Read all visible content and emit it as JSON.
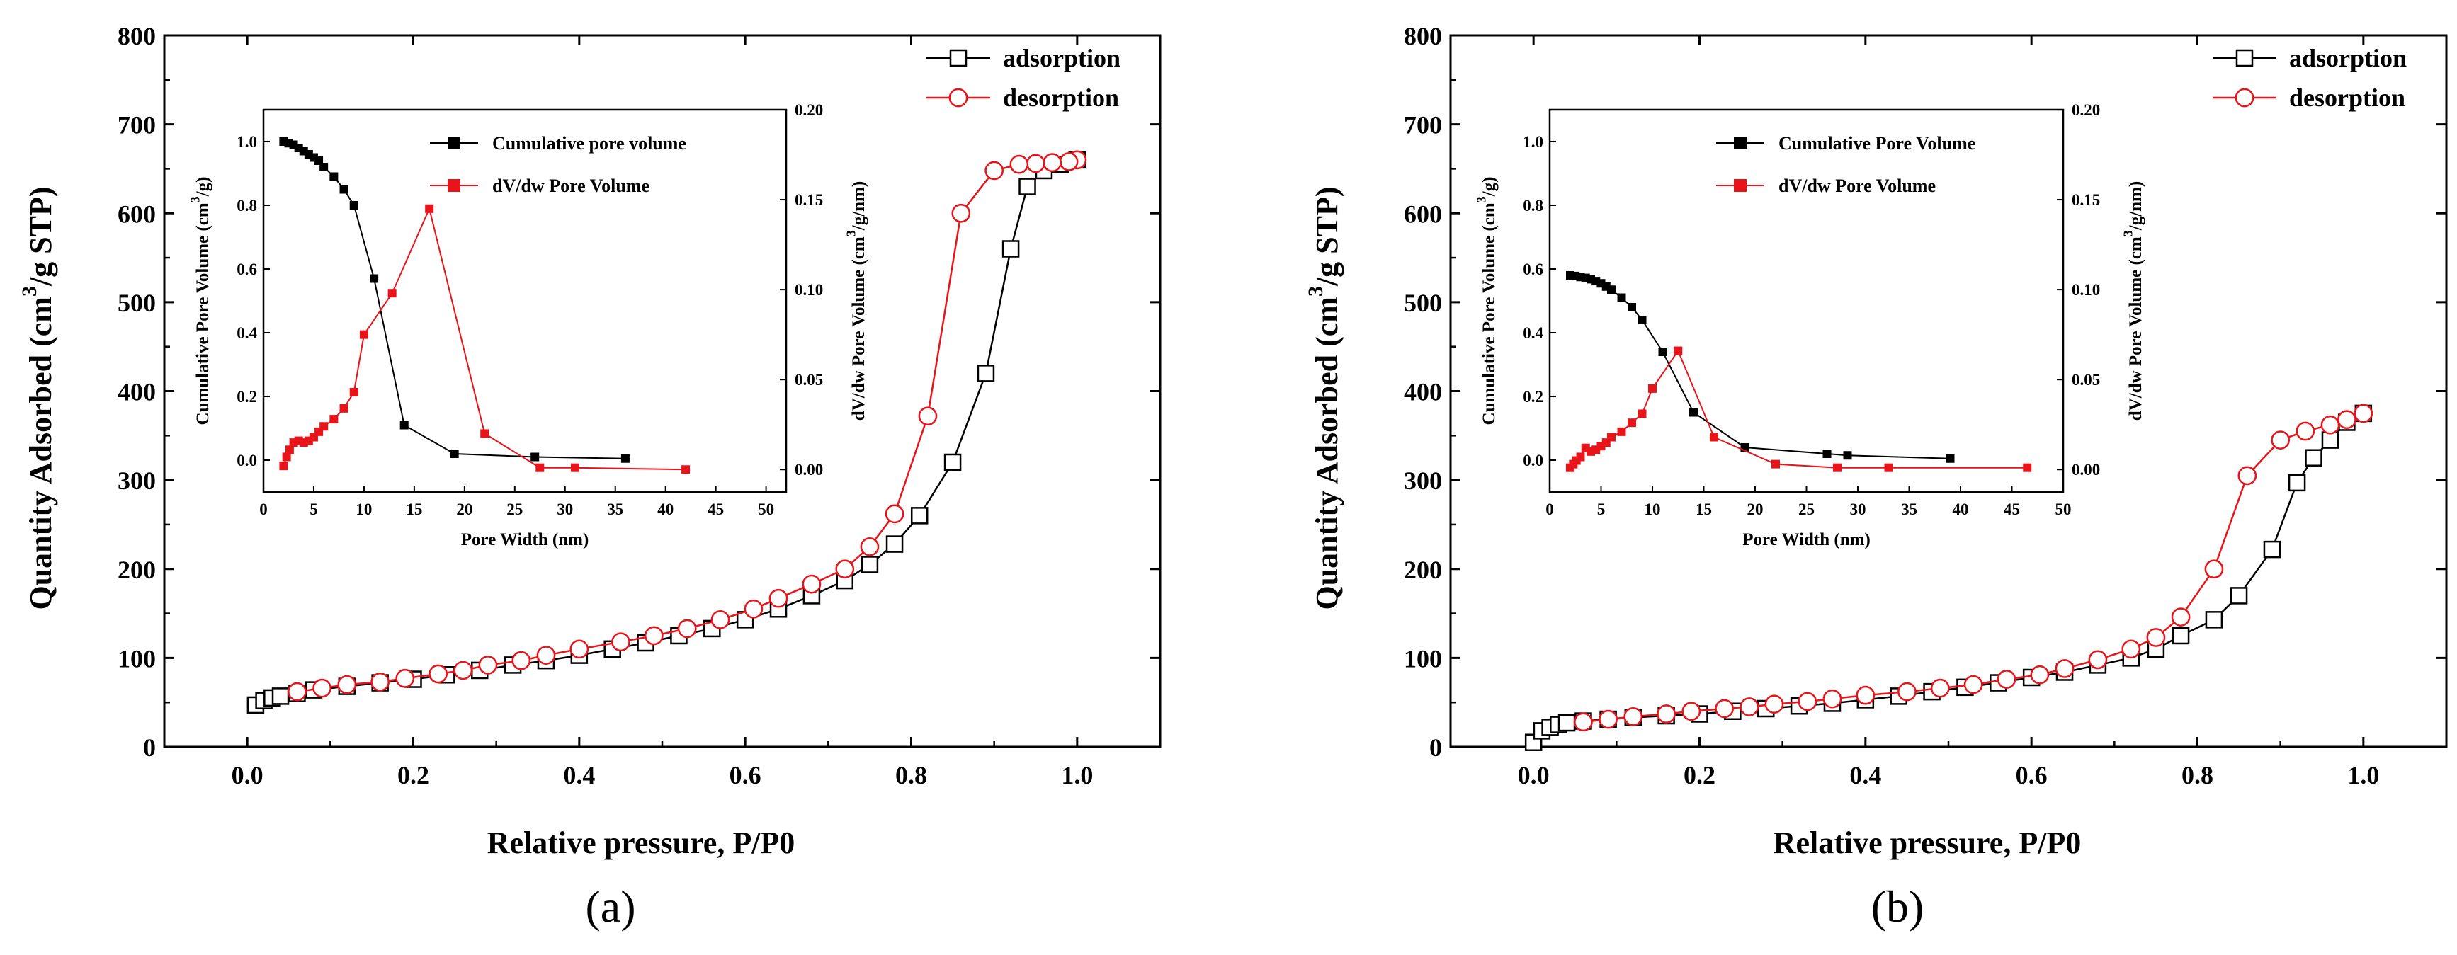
{
  "colors": {
    "adsorption": "#000000",
    "desorption": "#e8141a",
    "cumulative": "#000000",
    "dvdw": "#e8141a",
    "axis": "#000000"
  },
  "chart_data": [
    {
      "type": "line",
      "panel_label": "(a)",
      "title": "",
      "xlabel": "Relative pressure, P/P0",
      "ylabel": "Quantity Adsorbed (cm",
      "ylabel_sup": "3",
      "ylabel_tail": "/g STP)",
      "xlim": [
        -0.1,
        1.1
      ],
      "ylim": [
        0,
        800
      ],
      "xticks": [
        0.0,
        0.2,
        0.4,
        0.6,
        0.8,
        1.0
      ],
      "xtick_labels": [
        "0.0",
        "0.2",
        "0.4",
        "0.6",
        "0.8",
        "1.0"
      ],
      "yticks": [
        0,
        100,
        200,
        300,
        400,
        500,
        600,
        700,
        800
      ],
      "ytick_labels": [
        "0",
        "100",
        "200",
        "300",
        "400",
        "500",
        "600",
        "700",
        "800"
      ],
      "legend_position": "top-right",
      "series": [
        {
          "name": "adsorption",
          "marker": "open-square",
          "x": [
            0.01,
            0.02,
            0.03,
            0.04,
            0.06,
            0.08,
            0.12,
            0.16,
            0.2,
            0.24,
            0.28,
            0.32,
            0.36,
            0.4,
            0.44,
            0.48,
            0.52,
            0.56,
            0.6,
            0.64,
            0.68,
            0.72,
            0.75,
            0.78,
            0.81,
            0.85,
            0.89,
            0.92,
            0.94,
            0.96,
            0.98,
            1.0
          ],
          "y": [
            47,
            52,
            55,
            57,
            60,
            64,
            68,
            72,
            76,
            81,
            86,
            92,
            97,
            103,
            110,
            117,
            125,
            133,
            143,
            155,
            170,
            187,
            205,
            228,
            260,
            320,
            420,
            560,
            630,
            648,
            655,
            660
          ]
        },
        {
          "name": "desorption",
          "marker": "open-circle",
          "x": [
            1.0,
            0.99,
            0.97,
            0.95,
            0.93,
            0.9,
            0.86,
            0.82,
            0.78,
            0.75,
            0.72,
            0.68,
            0.64,
            0.61,
            0.57,
            0.53,
            0.49,
            0.45,
            0.4,
            0.36,
            0.33,
            0.29,
            0.26,
            0.23,
            0.19,
            0.16,
            0.12,
            0.09,
            0.06
          ],
          "y": [
            660,
            658,
            657,
            656,
            655,
            648,
            600,
            372,
            262,
            225,
            200,
            183,
            167,
            155,
            143,
            133,
            125,
            118,
            110,
            103,
            97,
            92,
            86,
            82,
            77,
            73,
            70,
            66,
            62
          ]
        }
      ],
      "inset": {
        "xlabel": "Pore Width (nm)",
        "ylabel_left": "Cumulative  Pore Volume (cm",
        "ylabel_left_sup": "3",
        "ylabel_left_tail": "/g)",
        "ylabel_right": "dV/dw Pore Volume (cm",
        "ylabel_right_sup": "3",
        "ylabel_right_tail": "/g/nm)",
        "xlim": [
          0,
          52
        ],
        "ylim_left": [
          -0.1,
          1.1
        ],
        "ylim_right": [
          -0.0125,
          0.2
        ],
        "xticks": [
          0,
          5,
          10,
          15,
          20,
          25,
          30,
          35,
          40,
          45,
          50
        ],
        "xtick_labels": [
          "0",
          "5",
          "10",
          "15",
          "20",
          "25",
          "30",
          "35",
          "40",
          "45",
          "50"
        ],
        "yticks_left": [
          0.0,
          0.2,
          0.4,
          0.6,
          0.8,
          1.0
        ],
        "ytick_labels_left": [
          "0.0",
          "0.2",
          "0.4",
          "0.6",
          "0.8",
          "1.0"
        ],
        "yticks_right": [
          0.0,
          0.05,
          0.1,
          0.15,
          0.2
        ],
        "ytick_labels_right": [
          "0.00",
          "0.05",
          "0.10",
          "0.15",
          "0.20"
        ],
        "series": [
          {
            "name": "Cumulative pore volume",
            "axis": "left",
            "marker": "filled-square",
            "x": [
              2.0,
              2.5,
              3.0,
              3.5,
              4.0,
              4.5,
              5.0,
              5.5,
              6.0,
              7.0,
              8.0,
              9.0,
              11.0,
              14.0,
              19.0,
              27.0,
              36.0
            ],
            "y": [
              1.0,
              0.995,
              0.99,
              0.98,
              0.97,
              0.96,
              0.95,
              0.94,
              0.92,
              0.89,
              0.85,
              0.8,
              0.57,
              0.11,
              0.02,
              0.01,
              0.005
            ]
          },
          {
            "name": "dV/dw Pore Volume",
            "axis": "right",
            "marker": "filled-square",
            "x": [
              2.0,
              2.3,
              2.6,
              3.0,
              3.5,
              4.0,
              4.5,
              5.0,
              5.5,
              6.0,
              7.0,
              8.0,
              9.0,
              10.0,
              12.8,
              16.5,
              22.0,
              27.5,
              31.0,
              42.0
            ],
            "y": [
              0.002,
              0.007,
              0.011,
              0.015,
              0.016,
              0.015,
              0.016,
              0.018,
              0.021,
              0.024,
              0.028,
              0.034,
              0.043,
              0.075,
              0.098,
              0.145,
              0.02,
              0.001,
              0.001,
              0.0
            ]
          }
        ]
      }
    },
    {
      "type": "line",
      "panel_label": "(b)",
      "title": "",
      "xlabel": "Relative pressure, P/P0",
      "ylabel": "Quantity Adsorbed (cm",
      "ylabel_sup": "3",
      "ylabel_tail": "/g STP)",
      "xlim": [
        -0.1,
        1.1
      ],
      "ylim": [
        0,
        800
      ],
      "xticks": [
        0.0,
        0.2,
        0.4,
        0.6,
        0.8,
        1.0
      ],
      "xtick_labels": [
        "0.0",
        "0.2",
        "0.4",
        "0.6",
        "0.8",
        "1.0"
      ],
      "yticks": [
        0,
        100,
        200,
        300,
        400,
        500,
        600,
        700,
        800
      ],
      "ytick_labels": [
        "0",
        "100",
        "200",
        "300",
        "400",
        "500",
        "600",
        "700",
        "800"
      ],
      "legend_position": "top-right",
      "series": [
        {
          "name": "adsorption",
          "marker": "open-square",
          "x": [
            0.0,
            0.01,
            0.02,
            0.03,
            0.04,
            0.06,
            0.09,
            0.12,
            0.16,
            0.2,
            0.24,
            0.28,
            0.32,
            0.36,
            0.4,
            0.44,
            0.48,
            0.52,
            0.56,
            0.6,
            0.64,
            0.68,
            0.72,
            0.75,
            0.78,
            0.82,
            0.85,
            0.89,
            0.92,
            0.94,
            0.96,
            0.98,
            1.0
          ],
          "y": [
            5,
            18,
            22,
            25,
            27,
            29,
            31,
            33,
            35,
            37,
            40,
            43,
            46,
            49,
            53,
            57,
            62,
            67,
            72,
            78,
            84,
            92,
            100,
            110,
            125,
            143,
            170,
            222,
            297,
            325,
            345,
            365,
            375
          ]
        },
        {
          "name": "desorption",
          "marker": "open-circle",
          "x": [
            1.0,
            0.98,
            0.96,
            0.93,
            0.9,
            0.86,
            0.82,
            0.78,
            0.75,
            0.72,
            0.68,
            0.64,
            0.61,
            0.57,
            0.53,
            0.49,
            0.45,
            0.4,
            0.36,
            0.33,
            0.29,
            0.26,
            0.23,
            0.19,
            0.16,
            0.12,
            0.09,
            0.06
          ],
          "y": [
            375,
            368,
            362,
            355,
            345,
            305,
            200,
            146,
            123,
            110,
            98,
            88,
            81,
            76,
            70,
            66,
            62,
            58,
            54,
            51,
            48,
            45,
            43,
            40,
            37,
            34,
            31,
            28
          ]
        }
      ],
      "inset": {
        "xlabel": "Pore Width (nm)",
        "ylabel_left": "Cumulative Pore Volume (cm",
        "ylabel_left_sup": "3",
        "ylabel_left_tail": "/g)",
        "ylabel_right": "dV/dw Pore Volume (cm",
        "ylabel_right_sup": "3",
        "ylabel_right_tail": "/g/nm)",
        "xlim": [
          0,
          50
        ],
        "ylim_left": [
          -0.1,
          1.1
        ],
        "ylim_right": [
          -0.0125,
          0.2
        ],
        "xticks": [
          0,
          5,
          10,
          15,
          20,
          25,
          30,
          35,
          40,
          45,
          50
        ],
        "xtick_labels": [
          "0",
          "5",
          "10",
          "15",
          "20",
          "25",
          "30",
          "35",
          "40",
          "45",
          "50"
        ],
        "yticks_left": [
          0.0,
          0.2,
          0.4,
          0.6,
          0.8,
          1.0
        ],
        "ytick_labels_left": [
          "0.0",
          "0.2",
          "0.4",
          "0.6",
          "0.8",
          "1.0"
        ],
        "yticks_right": [
          0.0,
          0.05,
          0.1,
          0.15,
          0.2
        ],
        "ytick_labels_right": [
          "0.00",
          "0.05",
          "0.10",
          "0.15",
          "0.20"
        ],
        "series": [
          {
            "name": "Cumulative Pore Volume",
            "axis": "left",
            "marker": "filled-square",
            "x": [
              2.0,
              2.5,
              3.0,
              3.5,
              4.0,
              4.5,
              5.0,
              5.5,
              6.0,
              7.0,
              8.0,
              9.0,
              11.0,
              14.0,
              19.0,
              27.0,
              29.0,
              39.0
            ],
            "y": [
              0.58,
              0.578,
              0.575,
              0.572,
              0.568,
              0.562,
              0.555,
              0.545,
              0.535,
              0.51,
              0.48,
              0.44,
              0.34,
              0.15,
              0.04,
              0.02,
              0.015,
              0.005
            ]
          },
          {
            "name": "dV/dw Pore Volume",
            "axis": "right",
            "marker": "filled-square",
            "x": [
              2.0,
              2.3,
              2.6,
              3.0,
              3.5,
              4.0,
              4.5,
              5.0,
              5.5,
              6.0,
              7.0,
              8.0,
              9.0,
              10.0,
              12.5,
              16.0,
              22.0,
              28.0,
              33.0,
              46.5
            ],
            "y": [
              0.001,
              0.003,
              0.005,
              0.007,
              0.012,
              0.01,
              0.011,
              0.013,
              0.015,
              0.018,
              0.021,
              0.026,
              0.031,
              0.045,
              0.066,
              0.018,
              0.003,
              0.001,
              0.001,
              0.001
            ]
          }
        ]
      }
    }
  ]
}
